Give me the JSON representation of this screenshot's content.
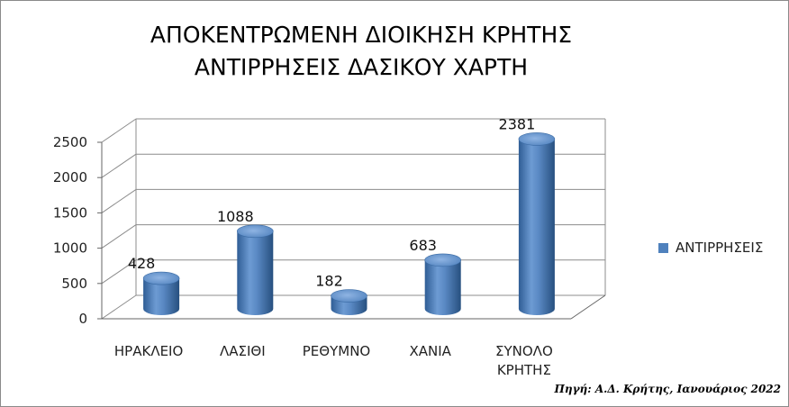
{
  "chart_data": {
    "type": "bar",
    "title": "ΑΠΟΚΕΝΤΡΩΜΕΝΗ ΔΙΟΙΚΗΣΗ ΚΡΗΤΗΣ ΑΝΤΙΡΡΗΣΕΙΣ ΔΑΣΙΚΟΥ ΧΑΡΤΗ",
    "title_lines": [
      "ΑΠΟΚΕΝΤΡΩΜΕΝΗ ΔΙΟΙΚΗΣΗ ΚΡΗΤΗΣ",
      "ΑΝΤΙΡΡΗΣΕΙΣ ΔΑΣΙΚΟΥ ΧΑΡΤΗ"
    ],
    "categories": [
      "ΗΡΑΚΛΕΙΟ",
      "ΛΑΣΙΘΙ",
      "ΡΕΘΥΜΝΟ",
      "ΧΑΝΙΑ",
      "ΣΥΝΟΛΟ ΚΡΗΤΗΣ"
    ],
    "category_lines": [
      [
        "ΗΡΑΚΛΕΙΟ"
      ],
      [
        "ΛΑΣΙΘΙ"
      ],
      [
        "ΡΕΘΥΜΝΟ"
      ],
      [
        "ΧΑΝΙΑ"
      ],
      [
        "ΣΥΝΟΛΟ",
        "ΚΡΗΤΗΣ"
      ]
    ],
    "series": [
      {
        "name": "ΑΝΤΙΡΡΗΣΕΙΣ",
        "values": [
          428,
          1088,
          182,
          683,
          2381
        ],
        "color": "#4f81bd"
      }
    ],
    "ylim": [
      0,
      2500
    ],
    "yticks": [
      0,
      500,
      1000,
      1500,
      2000,
      2500
    ],
    "grid": true,
    "legend": "right",
    "style": "3d-cylinder"
  },
  "source": "Πηγή: Α.Δ. Κρήτης, Ιανουάριος 2022"
}
